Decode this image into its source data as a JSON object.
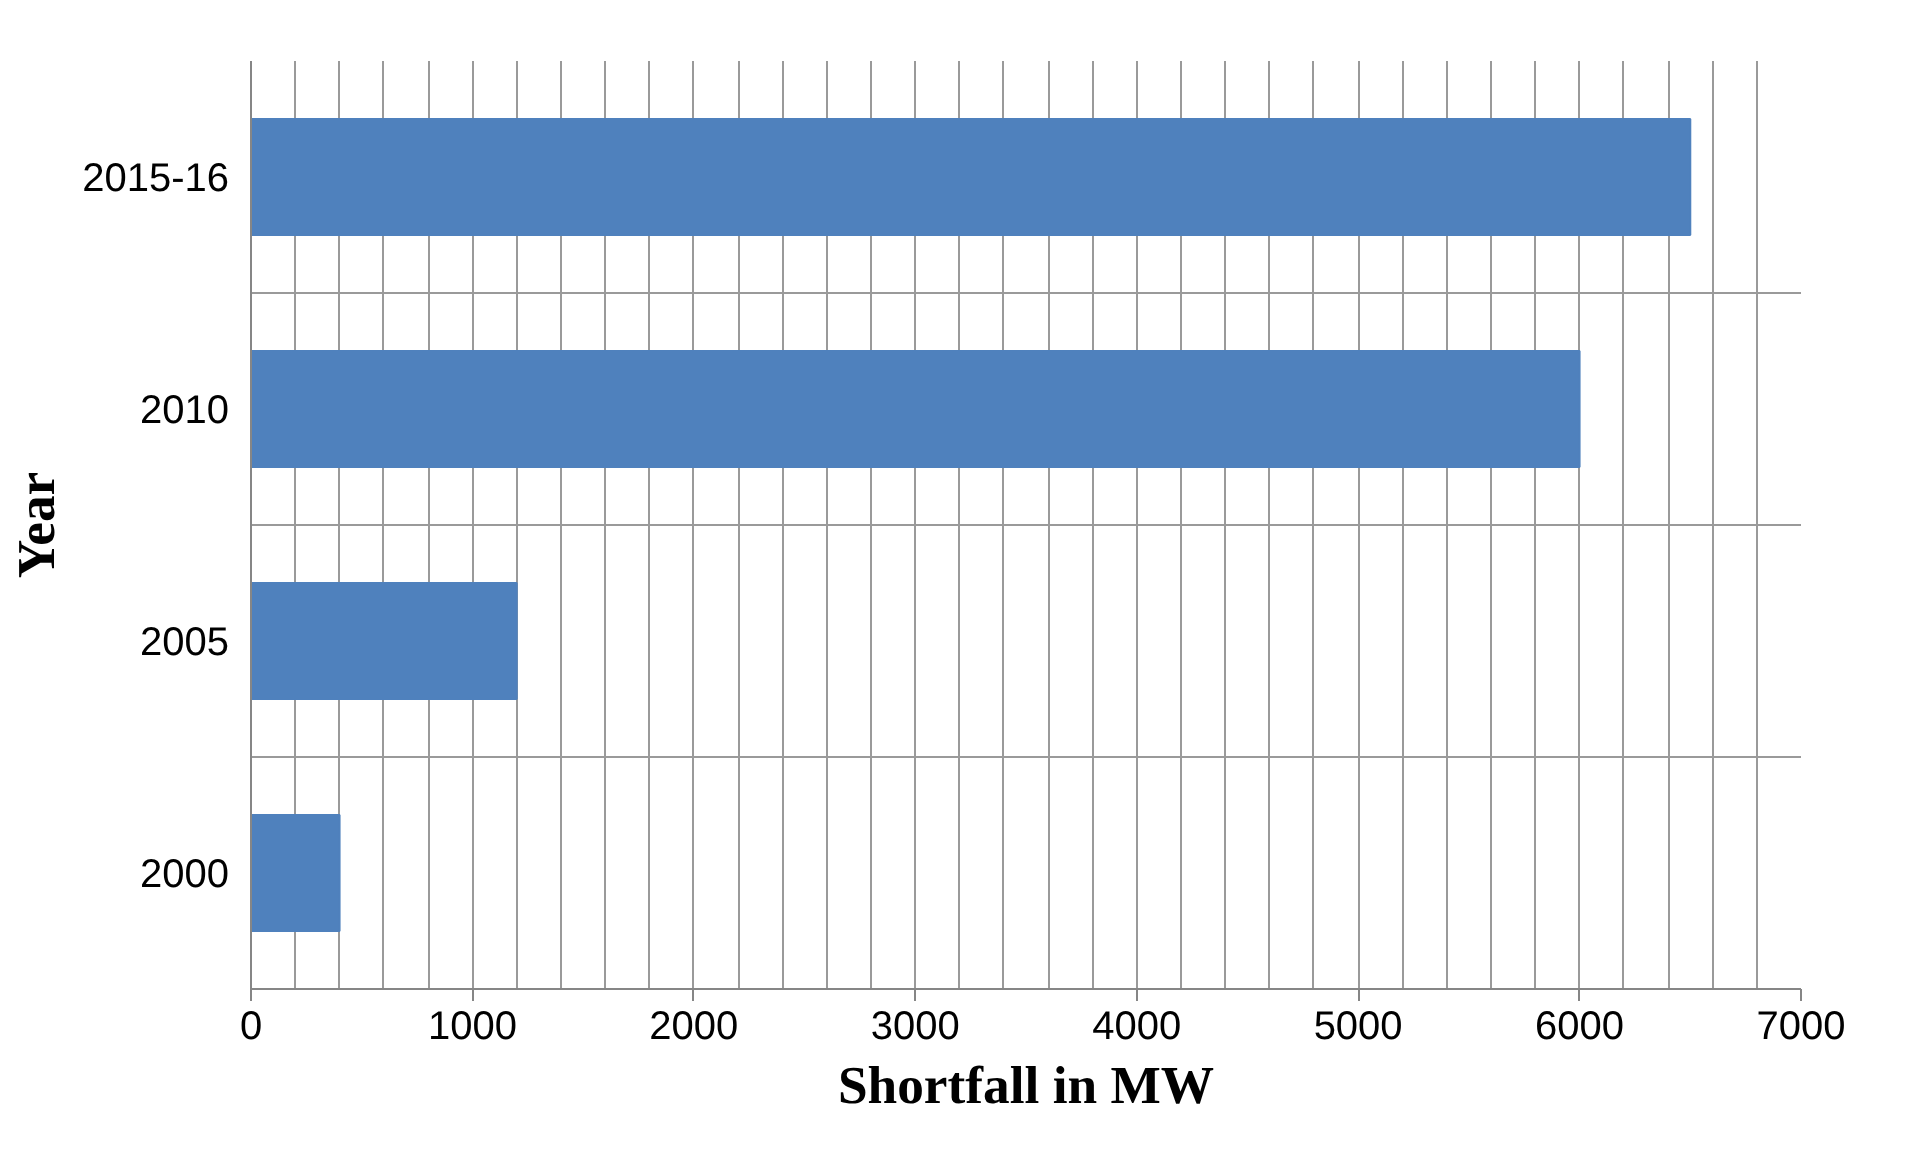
{
  "chart_data": {
    "type": "bar",
    "orientation": "horizontal",
    "xlabel": "Shortfall in MW",
    "ylabel": "Year",
    "categories": [
      "2015-16",
      "2010",
      "2005",
      "2000"
    ],
    "values": [
      6500,
      6000,
      1200,
      400
    ],
    "color": "#4f81bd",
    "xlim": [
      0,
      7000
    ],
    "xticks": [
      0,
      {
        "value": 200,
        "label": null
      },
      {
        "value": 400,
        "label": null
      },
      {
        "value": 600,
        "label": null
      },
      {
        "value": 800,
        "label": null
      },
      1000,
      {
        "value": 1200,
        "label": null
      },
      {
        "value": 1400,
        "label": null
      },
      {
        "value": 1600,
        "label": null
      },
      {
        "value": 1800,
        "label": null
      },
      2000,
      {
        "value": 2200,
        "label": null
      },
      {
        "value": 2400,
        "label": null
      },
      {
        "value": 2600,
        "label": null
      },
      {
        "value": 2800,
        "label": null
      },
      3000,
      {
        "value": 3200,
        "label": null
      },
      {
        "value": 3400,
        "label": null
      },
      {
        "value": 3600,
        "label": null
      },
      {
        "value": 3800,
        "label": null
      },
      4000,
      {
        "value": 4200,
        "label": null
      },
      {
        "value": 4400,
        "label": null
      },
      {
        "value": 4600,
        "label": null
      },
      {
        "value": 4800,
        "label": null
      },
      5000,
      {
        "value": 5200,
        "label": null
      },
      {
        "value": 5400,
        "label": null
      },
      {
        "value": 5600,
        "label": null
      },
      {
        "value": 5800,
        "label": null
      },
      6000,
      {
        "value": 6200,
        "label": null
      },
      {
        "value": 6400,
        "label": null
      },
      {
        "value": 6600,
        "label": null
      },
      {
        "value": 6800,
        "label": null
      },
      7000
    ],
    "grid": true
  }
}
